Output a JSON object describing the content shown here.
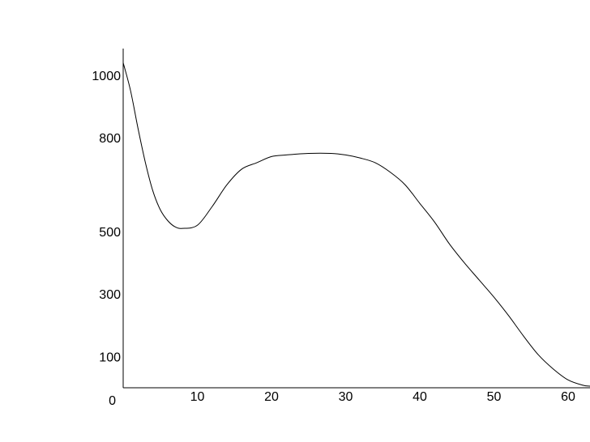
{
  "chart_data": {
    "type": "line",
    "title": "",
    "xlabel": "",
    "ylabel": "",
    "x_ticks": [
      {
        "value": 10,
        "label": "10"
      },
      {
        "value": 20,
        "label": "20"
      },
      {
        "value": 30,
        "label": "30"
      },
      {
        "value": 40,
        "label": "40"
      },
      {
        "value": 50,
        "label": "50"
      },
      {
        "value": 60,
        "label": "60"
      }
    ],
    "y_ticks": [
      {
        "value": 0,
        "label": "0"
      },
      {
        "value": 100,
        "label": "100"
      },
      {
        "value": 300,
        "label": "300"
      },
      {
        "value": 500,
        "label": "500"
      },
      {
        "value": 800,
        "label": "800"
      },
      {
        "value": 1000,
        "label": "1000"
      }
    ],
    "xlim": [
      0,
      65
    ],
    "ylim": [
      0,
      1050
    ],
    "grid": false,
    "series": [
      {
        "color": "#000000",
        "x": [
          0,
          1,
          2,
          3,
          4,
          5,
          6,
          7,
          8,
          10,
          12,
          14,
          16,
          18,
          20,
          22,
          25,
          28,
          30,
          32,
          34,
          36,
          38,
          40,
          42,
          44,
          46,
          48,
          50,
          52,
          54,
          56,
          58,
          60,
          62,
          63,
          64,
          65
        ],
        "y": [
          1040,
          950,
          830,
          720,
          630,
          570,
          535,
          515,
          510,
          520,
          580,
          650,
          700,
          720,
          740,
          745,
          750,
          750,
          745,
          735,
          720,
          690,
          650,
          590,
          530,
          460,
          400,
          345,
          290,
          230,
          165,
          105,
          60,
          25,
          8,
          5,
          3,
          2
        ]
      }
    ]
  }
}
